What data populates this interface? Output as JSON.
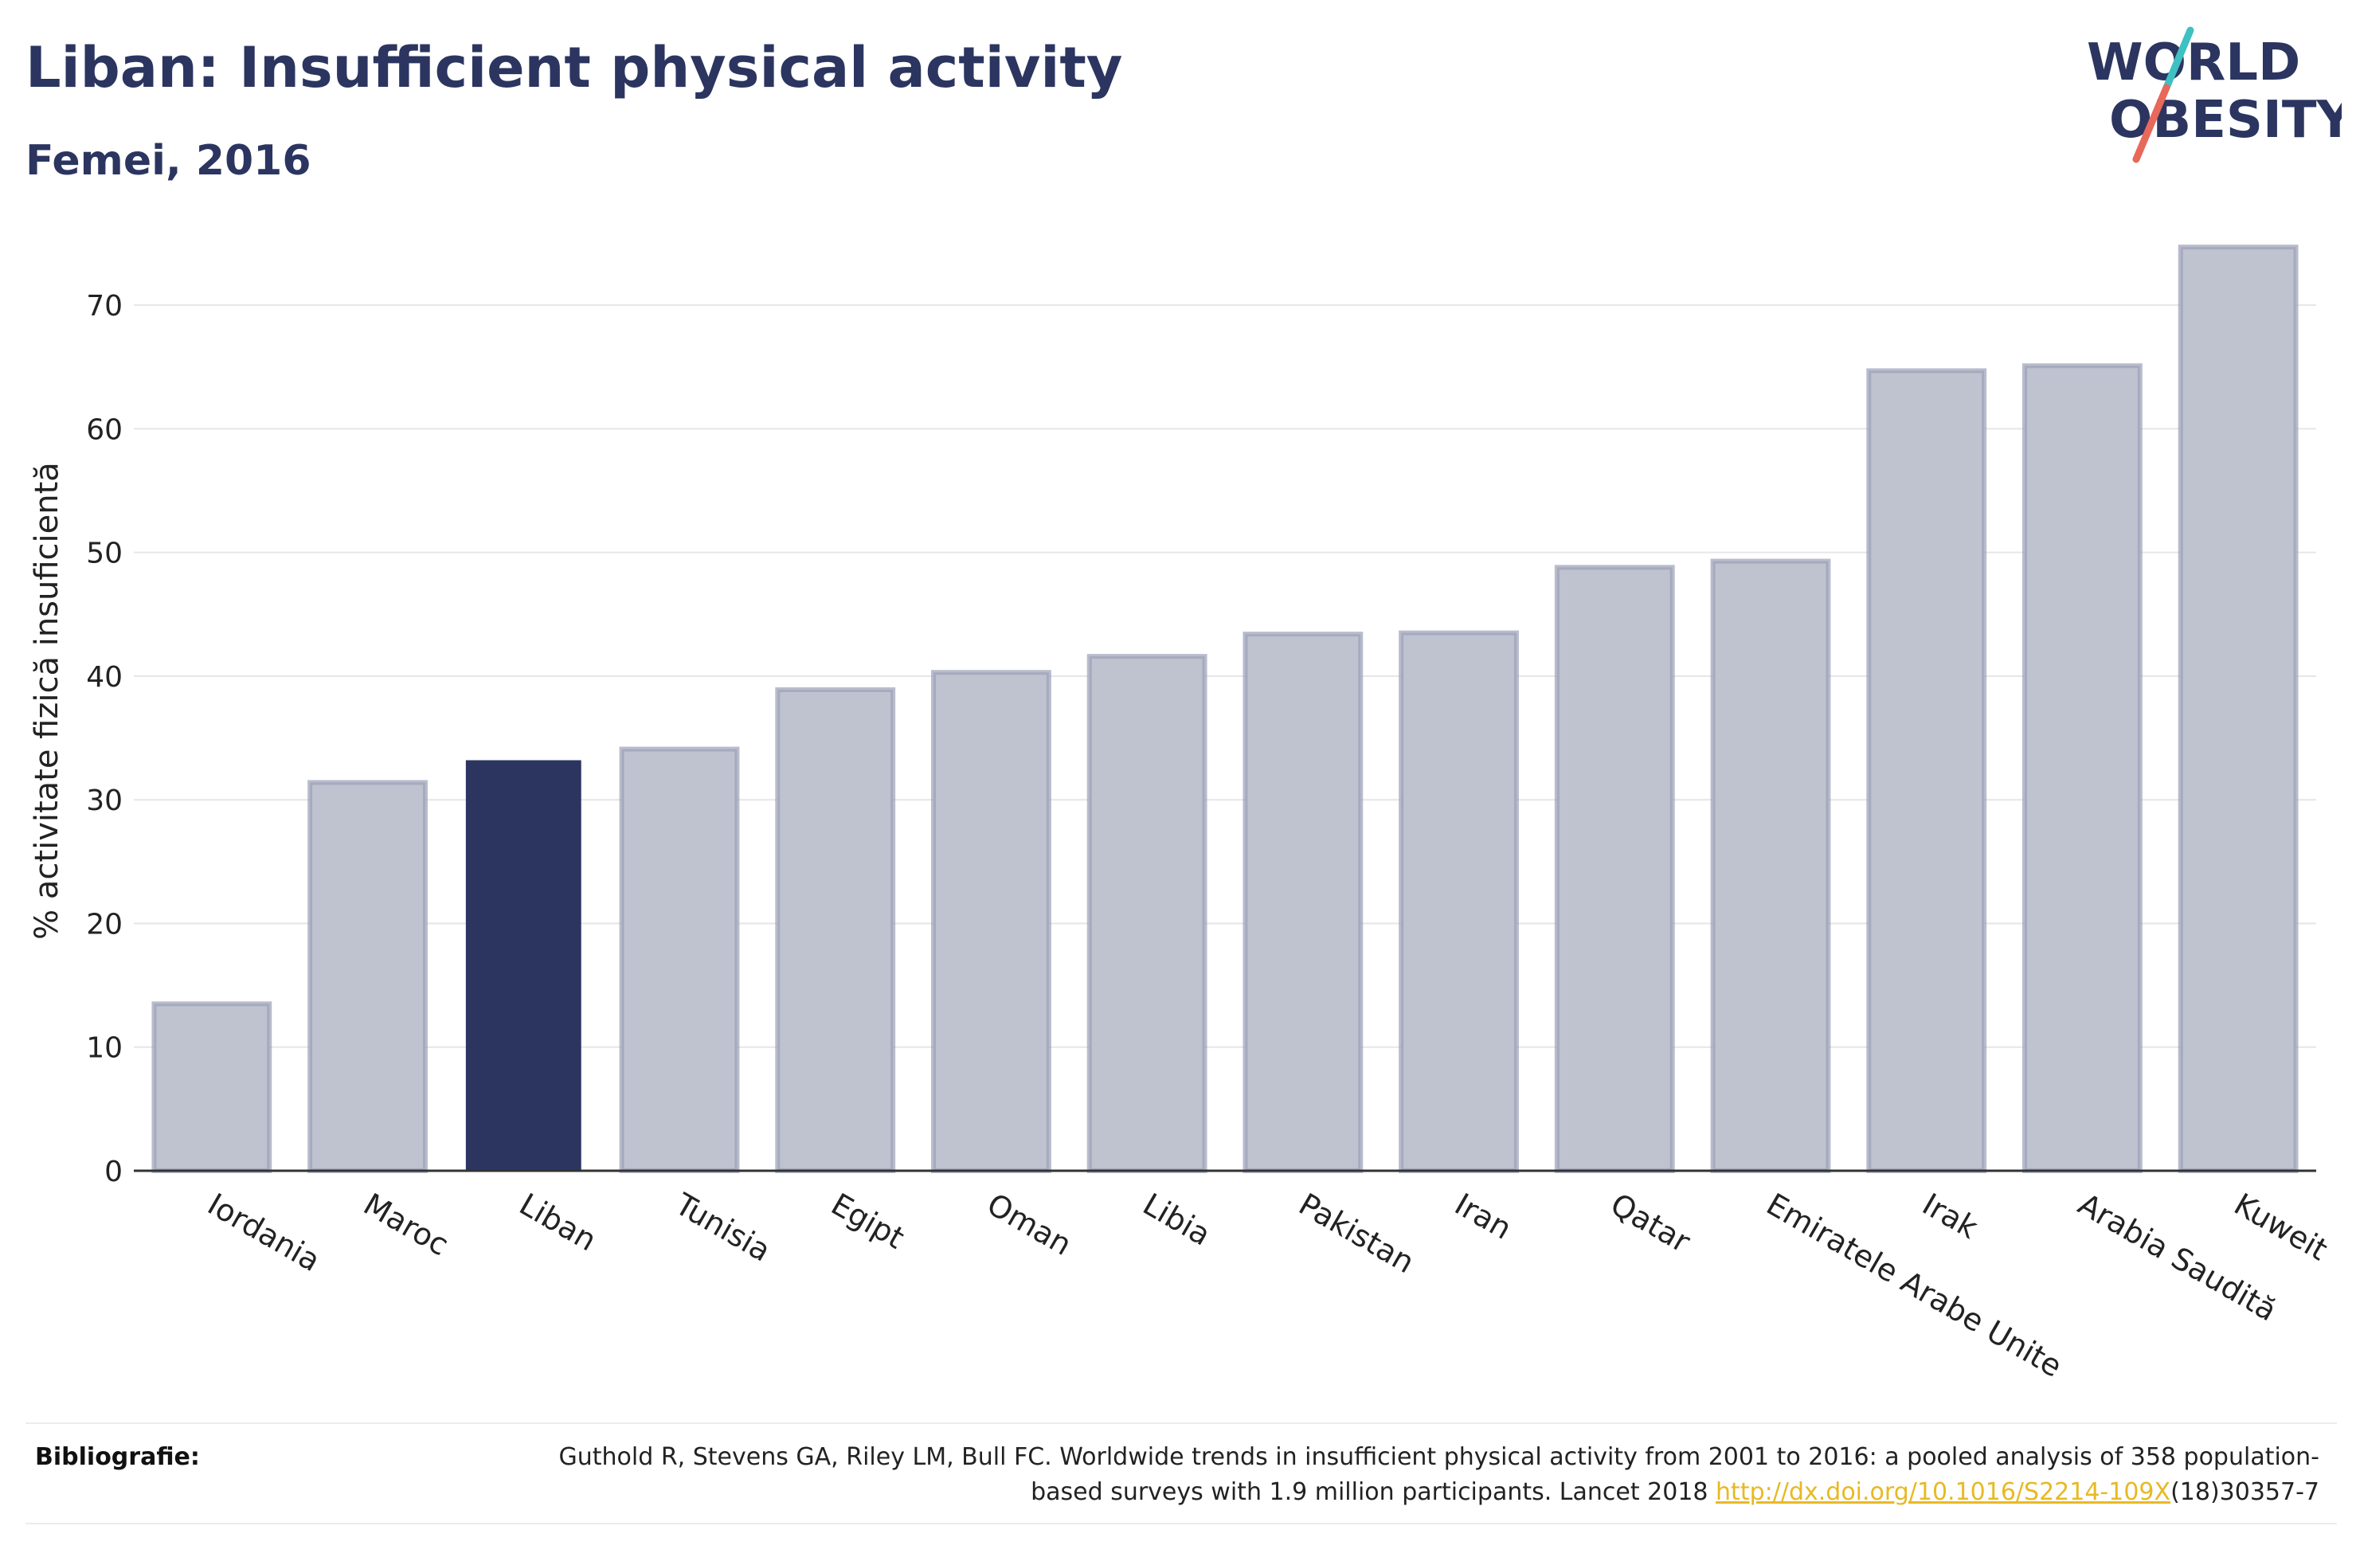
{
  "header": {
    "title": "Liban: Insufficient physical activity",
    "subtitle": "Femei, 2016"
  },
  "logo": {
    "line1": "WORLD",
    "line2": "OBESITY",
    "slash_colors": [
      "#3fc0c3",
      "#e8685a"
    ]
  },
  "chart_data": {
    "type": "bar",
    "categories": [
      "Iordania",
      "Maroc",
      "Liban",
      "Tunisia",
      "Egipt",
      "Oman",
      "Libia",
      "Pakistan",
      "Iran",
      "Qatar",
      "Emiratele Arabe Unite",
      "Irak",
      "Arabia Saudită",
      "Kuweit"
    ],
    "values": [
      13.5,
      31.4,
      33.2,
      34.1,
      38.9,
      40.3,
      41.6,
      43.4,
      43.5,
      48.8,
      49.3,
      64.7,
      65.1,
      74.7
    ],
    "highlight": "Liban",
    "ylabel": "% activitate fizică insuficientă",
    "ylim": [
      0,
      76
    ],
    "yticks": [
      0,
      10,
      20,
      30,
      40,
      50,
      60,
      70
    ],
    "grid": true,
    "colors": {
      "bar": "#bfc3d0",
      "bar_edge": "#9aa0b6",
      "highlight": "#2b3560"
    }
  },
  "footer": {
    "label": "Bibliografie:",
    "text_before": "Guthold R, Stevens GA, Riley LM, Bull FC. Worldwide trends in insufficient physical activity from 2001 to 2016: a pooled analysis of 358 population-based surveys with 1.9 million participants. Lancet 2018 ",
    "link": "http://dx.doi.org/10.1016/S2214-109X",
    "text_after": "(18)30357-7"
  }
}
